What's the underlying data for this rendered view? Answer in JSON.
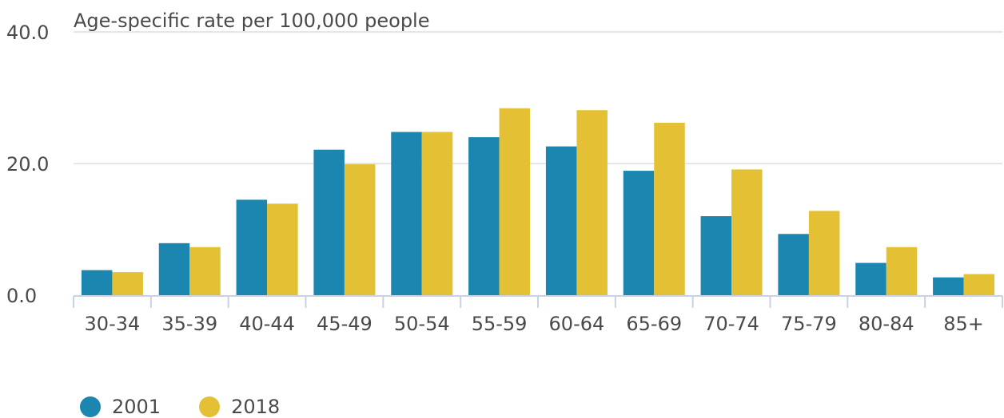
{
  "chart_data": {
    "type": "bar",
    "title": "Age-specific rate per 100,000 people",
    "categories": [
      "30-34",
      "35-39",
      "40-44",
      "45-49",
      "50-54",
      "55-59",
      "60-64",
      "65-69",
      "70-74",
      "75-79",
      "80-84",
      "85+"
    ],
    "series": [
      {
        "name": "2001",
        "color": "#1b87b0",
        "values": [
          3.8,
          7.9,
          14.5,
          22.1,
          24.8,
          24.0,
          22.6,
          18.9,
          12.0,
          9.3,
          4.9,
          2.7
        ]
      },
      {
        "name": "2018",
        "color": "#e3c034",
        "values": [
          3.5,
          7.3,
          13.9,
          19.9,
          24.8,
          28.4,
          28.1,
          26.2,
          19.1,
          12.8,
          7.3,
          3.2
        ]
      }
    ],
    "ylim": [
      0,
      40
    ],
    "yticks": [
      "0.0",
      "20.0",
      "40.0"
    ],
    "grid": true,
    "legend_position": "bottom-left"
  }
}
